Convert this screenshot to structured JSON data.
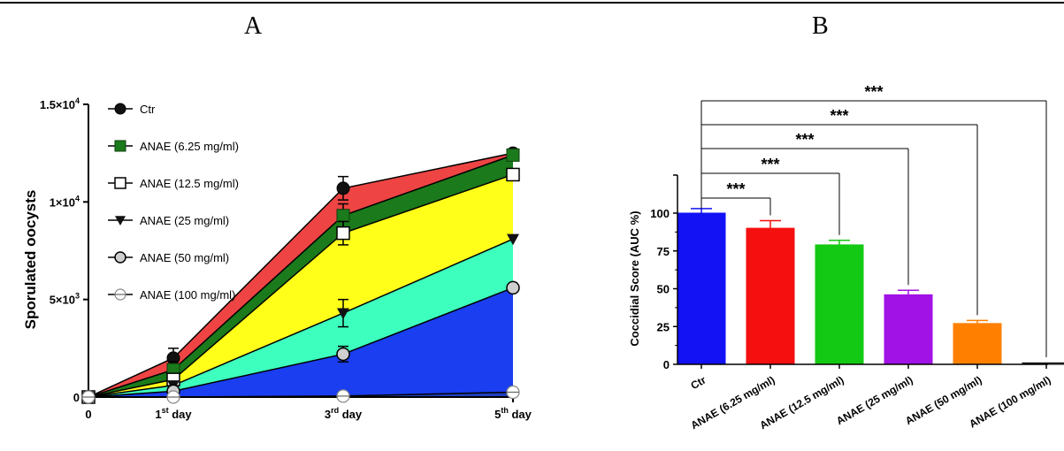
{
  "panels": {
    "a": "A",
    "b": "B"
  },
  "chart_data": [
    {
      "type": "area",
      "panel": "A",
      "title": "",
      "ylabel": "Sporulated oocysts",
      "xlabel": "",
      "x_ticks": [
        {
          "main": "0",
          "sup": "",
          "rest": ""
        },
        {
          "main": "1",
          "sup": "st",
          "rest": " day"
        },
        {
          "main": "3",
          "sup": "rd",
          "rest": " day"
        },
        {
          "main": "5",
          "sup": "th",
          "rest": " day"
        }
      ],
      "x": [
        0,
        1,
        3,
        5
      ],
      "y_ticks": [
        {
          "value": 0,
          "base": "0",
          "exp": ""
        },
        {
          "value": 5000,
          "base": "5×10",
          "exp": "3"
        },
        {
          "value": 10000,
          "base": "1×10",
          "exp": "4"
        },
        {
          "value": 15000,
          "base": "1.5×10",
          "exp": "4"
        }
      ],
      "ylim": [
        0,
        15000
      ],
      "legend_position": "top-left",
      "series": [
        {
          "name": "Ctr",
          "marker": "circle-filled",
          "fill": "#ee4444",
          "values": [
            0,
            2000,
            10700,
            12500
          ],
          "errors": [
            0,
            500,
            600,
            0
          ]
        },
        {
          "name": "ANAE (6.25 mg/ml)",
          "marker": "square-filled",
          "fill": "#1b7a1b",
          "values": [
            0,
            1400,
            9300,
            12400
          ],
          "errors": [
            0,
            400,
            600,
            0
          ]
        },
        {
          "name": "ANAE (12.5 mg/ml)",
          "marker": "square-open",
          "fill": "#ffff1a",
          "values": [
            0,
            900,
            8400,
            11400
          ],
          "errors": [
            0,
            300,
            600,
            200
          ]
        },
        {
          "name": "ANAE (25 mg/ml)",
          "marker": "triangle-down",
          "fill": "#3dffbe",
          "values": [
            0,
            600,
            4300,
            8100
          ],
          "errors": [
            0,
            200,
            700,
            0
          ]
        },
        {
          "name": "ANAE (50 mg/ml)",
          "marker": "circle-gray",
          "fill": "#1a3ef0",
          "values": [
            0,
            300,
            2200,
            5600
          ],
          "errors": [
            0,
            150,
            400,
            0
          ]
        },
        {
          "name": "ANAE (100 mg/ml)",
          "marker": "circle-open-line",
          "fill": "#2040c0",
          "values": [
            0,
            0,
            50,
            250
          ],
          "errors": [
            0,
            0,
            0,
            0
          ]
        }
      ]
    },
    {
      "type": "bar",
      "panel": "B",
      "title": "",
      "ylabel": "Coccidial Score (AUC %)",
      "xlabel": "",
      "categories": [
        "Ctr",
        "ANAE (6.25 mg/ml)",
        "ANAE (12.5 mg/ml)",
        "ANAE (25 mg/ml)",
        "ANAE (50 mg/ml)",
        "ANAE (100 mg/ml)"
      ],
      "values": [
        100,
        90,
        79,
        46,
        27,
        1
      ],
      "errors": [
        3,
        5,
        3,
        3,
        2,
        0
      ],
      "colors": [
        "#1212f5",
        "#f50f0f",
        "#13c913",
        "#a112e6",
        "#ff8000",
        "#1a1a1a"
      ],
      "y_ticks": [
        0,
        25,
        50,
        75,
        100
      ],
      "ylim": [
        0,
        100
      ],
      "significance": [
        "***",
        "***",
        "***",
        "***",
        "***"
      ]
    }
  ]
}
